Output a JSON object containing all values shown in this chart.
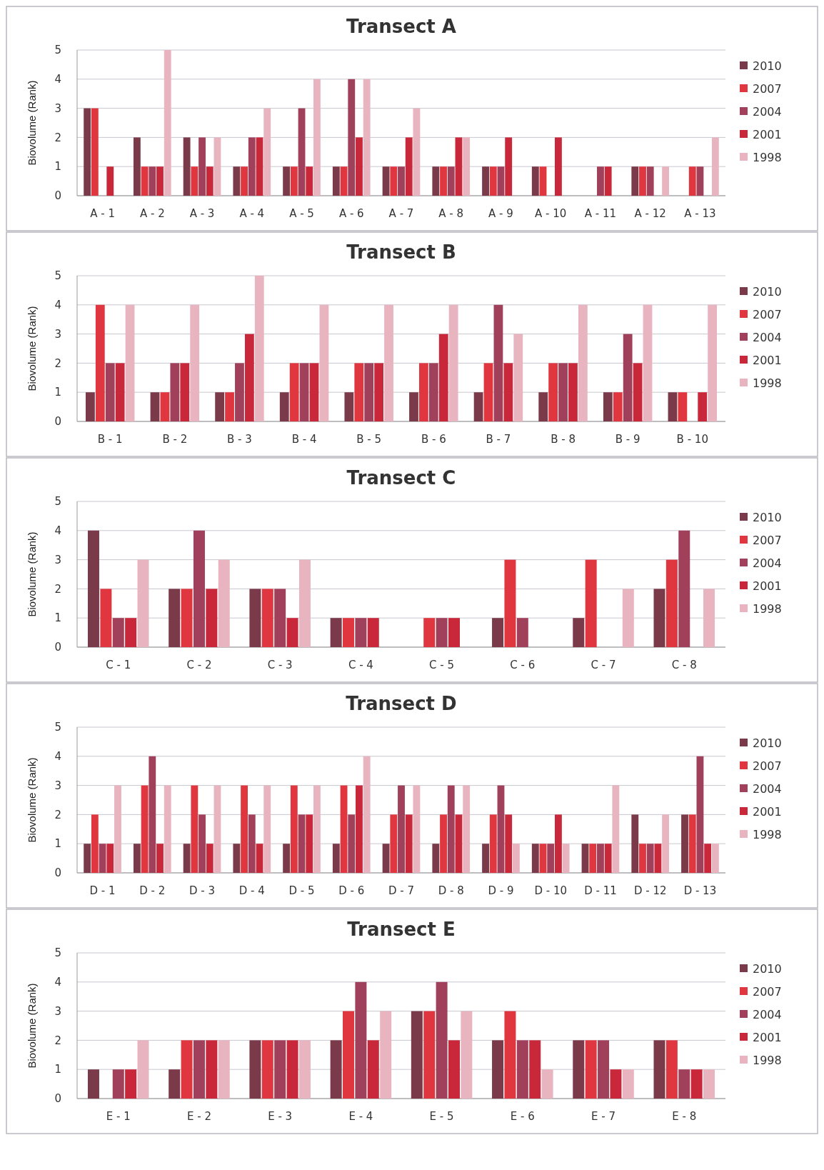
{
  "chart_data": [
    {
      "type": "bar",
      "title": "Transect A",
      "ylabel": "Biovolume (Rank)",
      "ylim": [
        0,
        5
      ],
      "yticks": [
        0,
        1,
        2,
        3,
        4,
        5
      ],
      "grid": "y",
      "legend": "right",
      "categories": [
        "A - 1",
        "A - 2",
        "A - 3",
        "A - 4",
        "A - 5",
        "A - 6",
        "A - 7",
        "A - 8",
        "A - 9",
        "A - 10",
        "A - 11",
        "A - 12",
        "A - 13"
      ],
      "series": [
        {
          "name": "2010",
          "color": "#7b3a4a",
          "values": [
            3,
            2,
            2,
            1,
            1,
            1,
            1,
            1,
            1,
            1,
            null,
            1,
            null
          ]
        },
        {
          "name": "2007",
          "color": "#e0363f",
          "values": [
            3,
            1,
            1,
            1,
            1,
            1,
            1,
            1,
            1,
            1,
            null,
            1,
            1
          ]
        },
        {
          "name": "2004",
          "color": "#a0405a",
          "values": [
            null,
            1,
            2,
            2,
            3,
            4,
            1,
            1,
            1,
            null,
            1,
            1,
            1
          ]
        },
        {
          "name": "2001",
          "color": "#c9283a",
          "values": [
            1,
            1,
            1,
            2,
            1,
            2,
            2,
            2,
            2,
            2,
            1,
            null,
            null
          ]
        },
        {
          "name": "1998",
          "color": "#e8b4c0",
          "values": [
            null,
            5,
            2,
            3,
            4,
            4,
            3,
            2,
            null,
            null,
            null,
            1,
            2
          ]
        }
      ]
    },
    {
      "type": "bar",
      "title": "Transect B",
      "ylabel": "Biovolume (Rank)",
      "ylim": [
        0,
        5
      ],
      "yticks": [
        0,
        1,
        2,
        3,
        4,
        5
      ],
      "grid": "y",
      "legend": "right",
      "categories": [
        "B - 1",
        "B - 2",
        "B - 3",
        "B - 4",
        "B - 5",
        "B - 6",
        "B - 7",
        "B - 8",
        "B - 9",
        "B - 10"
      ],
      "series": [
        {
          "name": "2010",
          "color": "#7b3a4a",
          "values": [
            1,
            1,
            1,
            1,
            1,
            1,
            1,
            1,
            1,
            1
          ]
        },
        {
          "name": "2007",
          "color": "#e0363f",
          "values": [
            4,
            1,
            1,
            2,
            2,
            2,
            2,
            2,
            1,
            1
          ]
        },
        {
          "name": "2004",
          "color": "#a0405a",
          "values": [
            2,
            2,
            2,
            2,
            2,
            2,
            4,
            2,
            3,
            null
          ]
        },
        {
          "name": "2001",
          "color": "#c9283a",
          "values": [
            2,
            2,
            3,
            2,
            2,
            3,
            2,
            2,
            2,
            1
          ]
        },
        {
          "name": "1998",
          "color": "#e8b4c0",
          "values": [
            4,
            4,
            5,
            4,
            4,
            4,
            3,
            4,
            4,
            4
          ]
        }
      ]
    },
    {
      "type": "bar",
      "title": "Transect C",
      "ylabel": "Biovolume (Rank)",
      "ylim": [
        0,
        5
      ],
      "yticks": [
        0,
        1,
        2,
        3,
        4,
        5
      ],
      "grid": "y",
      "legend": "right",
      "categories": [
        "C - 1",
        "C - 2",
        "C - 3",
        "C - 4",
        "C - 5",
        "C - 6",
        "C - 7",
        "C - 8"
      ],
      "series": [
        {
          "name": "2010",
          "color": "#7b3a4a",
          "values": [
            4,
            2,
            2,
            1,
            null,
            1,
            1,
            2
          ]
        },
        {
          "name": "2007",
          "color": "#e0363f",
          "values": [
            2,
            2,
            2,
            1,
            1,
            3,
            3,
            3
          ]
        },
        {
          "name": "2004",
          "color": "#a0405a",
          "values": [
            1,
            4,
            2,
            1,
            1,
            1,
            null,
            4
          ]
        },
        {
          "name": "2001",
          "color": "#c9283a",
          "values": [
            1,
            2,
            1,
            1,
            1,
            null,
            null,
            null
          ]
        },
        {
          "name": "1998",
          "color": "#e8b4c0",
          "values": [
            3,
            3,
            3,
            null,
            null,
            null,
            2,
            2
          ]
        }
      ]
    },
    {
      "type": "bar",
      "title": "Transect D",
      "ylabel": "Biovolume (Rank)",
      "ylim": [
        0,
        5
      ],
      "yticks": [
        0,
        1,
        2,
        3,
        4,
        5
      ],
      "grid": "y",
      "legend": "right",
      "categories": [
        "D - 1",
        "D - 2",
        "D - 3",
        "D - 4",
        "D - 5",
        "D - 6",
        "D - 7",
        "D - 8",
        "D - 9",
        "D - 10",
        "D - 11",
        "D - 12",
        "D - 13"
      ],
      "series": [
        {
          "name": "2010",
          "color": "#7b3a4a",
          "values": [
            1,
            1,
            1,
            1,
            1,
            1,
            1,
            1,
            1,
            1,
            1,
            2,
            2
          ]
        },
        {
          "name": "2007",
          "color": "#e0363f",
          "values": [
            2,
            3,
            3,
            3,
            3,
            3,
            2,
            2,
            2,
            1,
            1,
            1,
            2
          ]
        },
        {
          "name": "2004",
          "color": "#a0405a",
          "values": [
            1,
            4,
            2,
            2,
            2,
            2,
            3,
            3,
            3,
            1,
            1,
            1,
            4
          ]
        },
        {
          "name": "2001",
          "color": "#c9283a",
          "values": [
            1,
            1,
            1,
            1,
            2,
            3,
            2,
            2,
            2,
            2,
            1,
            1,
            1
          ]
        },
        {
          "name": "1998",
          "color": "#e8b4c0",
          "values": [
            3,
            3,
            3,
            3,
            3,
            4,
            3,
            3,
            1,
            1,
            3,
            2,
            1
          ]
        }
      ]
    },
    {
      "type": "bar",
      "title": "Transect E",
      "ylabel": "Biovolume (Rank)",
      "ylim": [
        0,
        5
      ],
      "yticks": [
        0,
        1,
        2,
        3,
        4,
        5
      ],
      "grid": "y",
      "legend": "right",
      "categories": [
        "E - 1",
        "E - 2",
        "E - 3",
        "E - 4",
        "E - 5",
        "E - 6",
        "E - 7",
        "E - 8"
      ],
      "series": [
        {
          "name": "2010",
          "color": "#7b3a4a",
          "values": [
            1,
            1,
            2,
            2,
            3,
            2,
            2,
            2
          ]
        },
        {
          "name": "2007",
          "color": "#e0363f",
          "values": [
            null,
            2,
            2,
            3,
            3,
            3,
            2,
            2
          ]
        },
        {
          "name": "2004",
          "color": "#a0405a",
          "values": [
            1,
            2,
            2,
            4,
            4,
            2,
            2,
            1
          ]
        },
        {
          "name": "2001",
          "color": "#c9283a",
          "values": [
            1,
            2,
            2,
            2,
            2,
            2,
            1,
            1
          ]
        },
        {
          "name": "1998",
          "color": "#e8b4c0",
          "values": [
            2,
            2,
            2,
            3,
            3,
            1,
            1,
            1
          ]
        }
      ]
    }
  ]
}
